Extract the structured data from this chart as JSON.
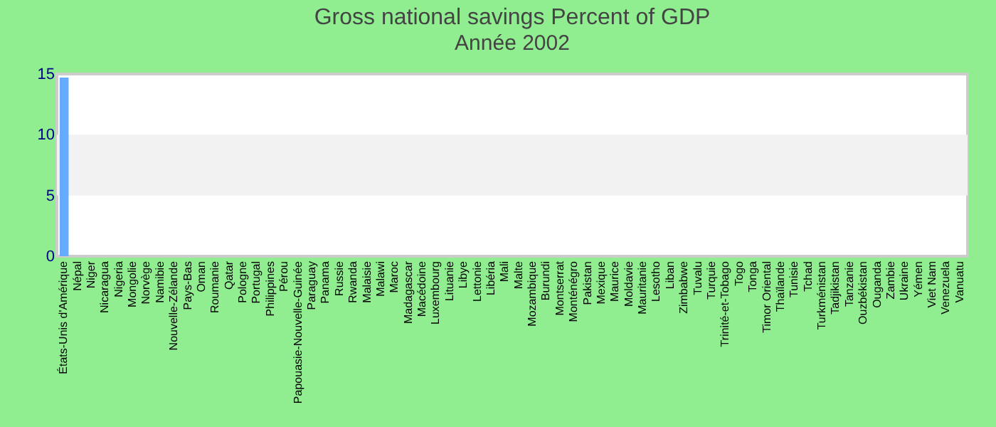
{
  "chart_data": {
    "type": "bar",
    "title": "Gross national savings  Percent of GDP",
    "subtitle": "Année 2002",
    "categories": [
      "États-Unis d'Amérique",
      "Népal",
      "Niger",
      "Nicaragua",
      "Nigeria",
      "Mongolie",
      "Norvège",
      "Namibie",
      "Nouvelle-Zélande",
      "Pays-Bas",
      "Oman",
      "Roumanie",
      "Qatar",
      "Pologne",
      "Portugal",
      "Philippines",
      "Pérou",
      "Papouasie-Nouvelle-Guinée",
      "Paraguay",
      "Panama",
      "Russie",
      "Rwanda",
      "Malaisie",
      "Malawi",
      "Maroc",
      "Madagascar",
      "Macédoine",
      "Luxembourg",
      "Lituanie",
      "Libye",
      "Lettonie",
      "Libéria",
      "Mali",
      "Malte",
      "Mozambique",
      "Burundi",
      "Montserrat",
      "Monténégro",
      "Pakistan",
      "Mexique",
      "Maurice",
      "Moldavie",
      "Mauritanie",
      "Lesotho",
      "Liban",
      "Zimbabwe",
      "Tuvalu",
      "Turquie",
      "Trinité-et-Tobago",
      "Togo",
      "Tonga",
      "Timor Oriental",
      "Thaïlande",
      "Tunisie",
      "Tchad",
      "Turkménistan",
      "Tadjikistan",
      "Tanzanie",
      "Ouzbékistan",
      "Ouganda",
      "Zambie",
      "Ukraine",
      "Yémen",
      "Viet Nam",
      "Venezuela",
      "Vanuatu"
    ],
    "values": [
      14.7,
      null,
      null,
      null,
      null,
      null,
      null,
      null,
      null,
      null,
      null,
      null,
      null,
      null,
      null,
      null,
      null,
      null,
      null,
      null,
      null,
      null,
      null,
      null,
      null,
      null,
      null,
      null,
      null,
      null,
      null,
      null,
      null,
      null,
      null,
      null,
      null,
      null,
      null,
      null,
      null,
      null,
      null,
      null,
      null,
      null,
      null,
      null,
      null,
      null,
      null,
      null,
      null,
      null,
      null,
      null,
      null,
      null,
      null,
      null,
      null,
      null,
      null,
      null,
      null,
      null
    ],
    "color": "#66aaff",
    "ylim": [
      0,
      15
    ],
    "yticks": [
      0,
      5,
      10,
      15
    ],
    "bands": [
      {
        "axis": "y",
        "from": 5,
        "to": 10,
        "color": "#f2f2f2"
      }
    ]
  }
}
